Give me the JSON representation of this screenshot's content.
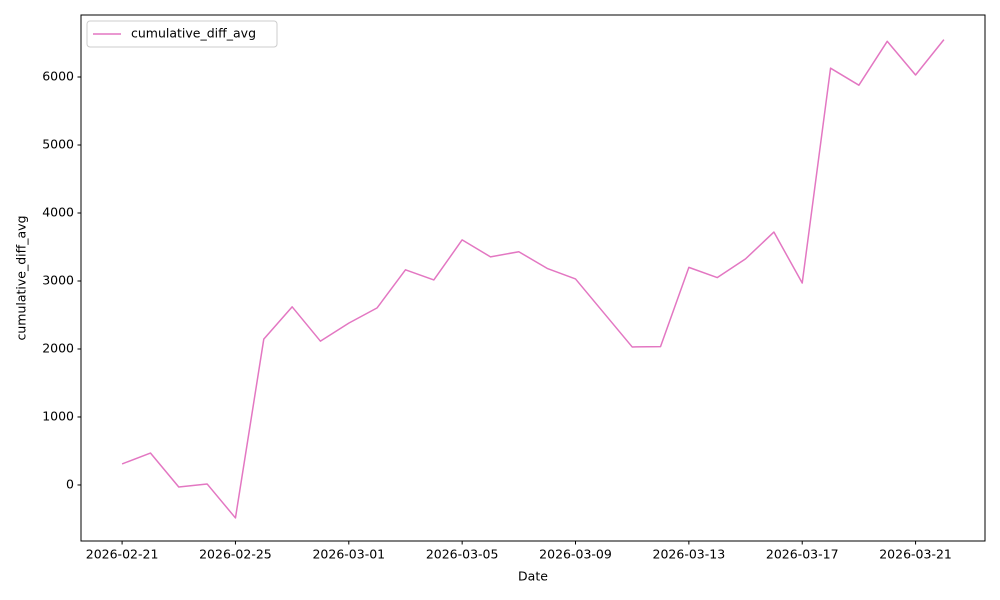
{
  "chart_data": {
    "type": "line",
    "xlabel": "Date",
    "ylabel": "cumulative_diff_avg",
    "x": [
      "2026-02-21",
      "2026-02-22",
      "2026-02-23",
      "2026-02-24",
      "2026-02-25",
      "2026-02-26",
      "2026-02-27",
      "2026-02-28",
      "2026-03-01",
      "2026-03-02",
      "2026-03-03",
      "2026-03-04",
      "2026-03-05",
      "2026-03-06",
      "2026-03-07",
      "2026-03-08",
      "2026-03-09",
      "2026-03-10",
      "2026-03-11",
      "2026-03-12",
      "2026-03-13",
      "2026-03-14",
      "2026-03-15",
      "2026-03-16",
      "2026-03-17",
      "2026-03-18",
      "2026-03-19",
      "2026-03-20",
      "2026-03-21",
      "2026-03-22"
    ],
    "series": [
      {
        "name": "cumulative_diff_avg",
        "color": "#e377c2",
        "values": [
          310,
          470,
          -30,
          15,
          -485,
          2145,
          2620,
          2115,
          2380,
          2605,
          3165,
          3015,
          3605,
          3355,
          3430,
          3185,
          3030,
          2530,
          2030,
          2035,
          3200,
          3050,
          3325,
          3720,
          2970,
          6130,
          5880,
          6525,
          6030,
          6550
        ]
      }
    ],
    "xlim": [
      "2026-02-19T13:12:00Z",
      "2026-03-23T10:48:00Z"
    ],
    "xticks": [
      "2026-02-21",
      "2026-02-25",
      "2026-03-01",
      "2026-03-05",
      "2026-03-09",
      "2026-03-13",
      "2026-03-17",
      "2026-03-21"
    ],
    "ylim": [
      -824,
      6912
    ],
    "yticks": [
      0,
      1000,
      2000,
      3000,
      4000,
      5000,
      6000
    ],
    "grid": false,
    "legend": "upper left"
  }
}
